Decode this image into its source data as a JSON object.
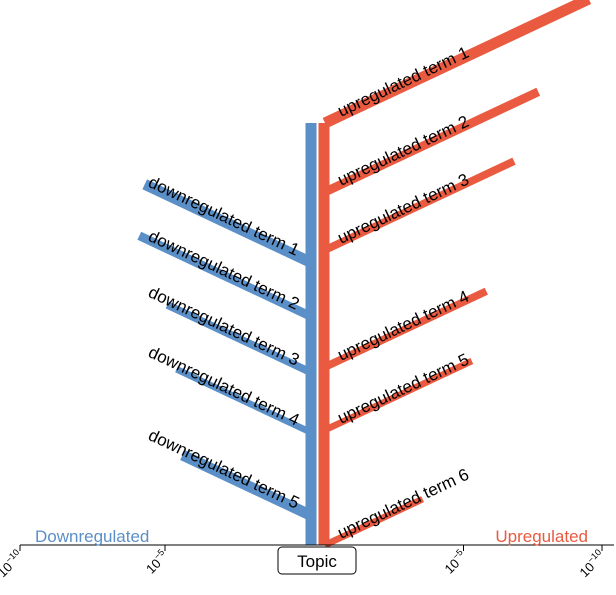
{
  "chart_data": {
    "type": "bar",
    "layout": "mirrored-branching (fishbone)",
    "center_label": "Topic",
    "x_axis": {
      "scale": "log10",
      "direction": "both sides from center",
      "left_range": [
        1e-10,
        1
      ],
      "right_range": [
        1,
        1e-10
      ],
      "ticks": [
        {
          "side": "left",
          "exp": -10,
          "base": "10",
          "sup": "−10"
        },
        {
          "side": "left",
          "exp": -5,
          "base": "10",
          "sup": "−5"
        },
        {
          "side": "right",
          "exp": -5,
          "base": "10",
          "sup": "−5"
        },
        {
          "side": "right",
          "exp": -10,
          "base": "10",
          "sup": "−10"
        }
      ]
    },
    "side_labels": {
      "left": {
        "text": "Downregulated",
        "color": "#5b8fc7"
      },
      "right": {
        "text": "Upregulated",
        "color": "#ea5a40"
      }
    },
    "colors": {
      "down": "#5b8fc7",
      "up": "#ea5a40"
    },
    "series": [
      {
        "name": "Downregulated",
        "items": [
          {
            "label": "downregulated term 1",
            "pvalue": 2e-06,
            "weight": 5
          },
          {
            "label": "downregulated term 2",
            "pvalue": 1.3e-06,
            "weight": 4
          },
          {
            "label": "downregulated term 3",
            "pvalue": 1.2e-05,
            "weight": 3.5
          },
          {
            "label": "downregulated term 4",
            "pvalue": 2.5e-05,
            "weight": 3
          },
          {
            "label": "downregulated term 5",
            "pvalue": 4e-05,
            "weight": 5
          }
        ]
      },
      {
        "name": "Upregulated",
        "items": [
          {
            "label": "upregulated term 1",
            "pvalue": 3e-10,
            "weight": 5
          },
          {
            "label": "upregulated term 2",
            "pvalue": 2e-08,
            "weight": 4
          },
          {
            "label": "upregulated term 3",
            "pvalue": 1.5e-07,
            "weight": 3.5
          },
          {
            "label": "upregulated term 4",
            "pvalue": 1.5e-06,
            "weight": 3.5
          },
          {
            "label": "upregulated term 5",
            "pvalue": 5e-06,
            "weight": 3
          },
          {
            "label": "upregulated term 6",
            "pvalue": 0.0003,
            "weight": 3
          }
        ]
      }
    ]
  }
}
